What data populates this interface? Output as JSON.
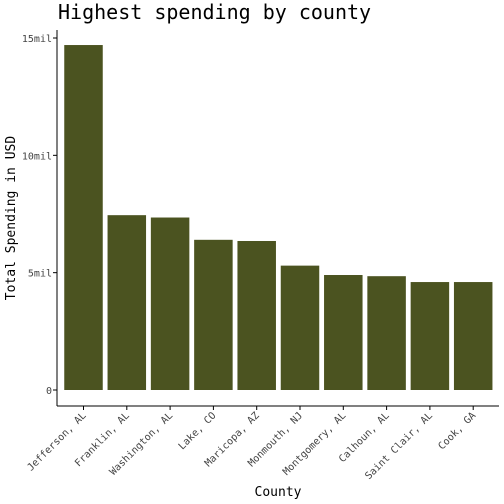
{
  "chart_data": {
    "type": "bar",
    "title": "Highest spending by county",
    "xlabel": "County",
    "ylabel": "Total Spending in USD",
    "categories": [
      "Jefferson, AL",
      "Franklin, AL",
      "Washington, AL",
      "Lake, CO",
      "Maricopa, AZ",
      "Monmouth, NJ",
      "Montgomery, AL",
      "Calhoun, AL",
      "Saint Clair, AL",
      "Cook, GA"
    ],
    "values": [
      14700000,
      7450000,
      7350000,
      6400000,
      6350000,
      5300000,
      4900000,
      4850000,
      4600000,
      4600000
    ],
    "ylim": [
      0,
      15000000
    ],
    "yticks": [
      0,
      5000000,
      10000000,
      15000000
    ],
    "ytick_labels": [
      "0",
      "5mil",
      "10mil",
      "15mil"
    ],
    "bar_color": "#4b5320",
    "grid": false,
    "legend": "none"
  }
}
